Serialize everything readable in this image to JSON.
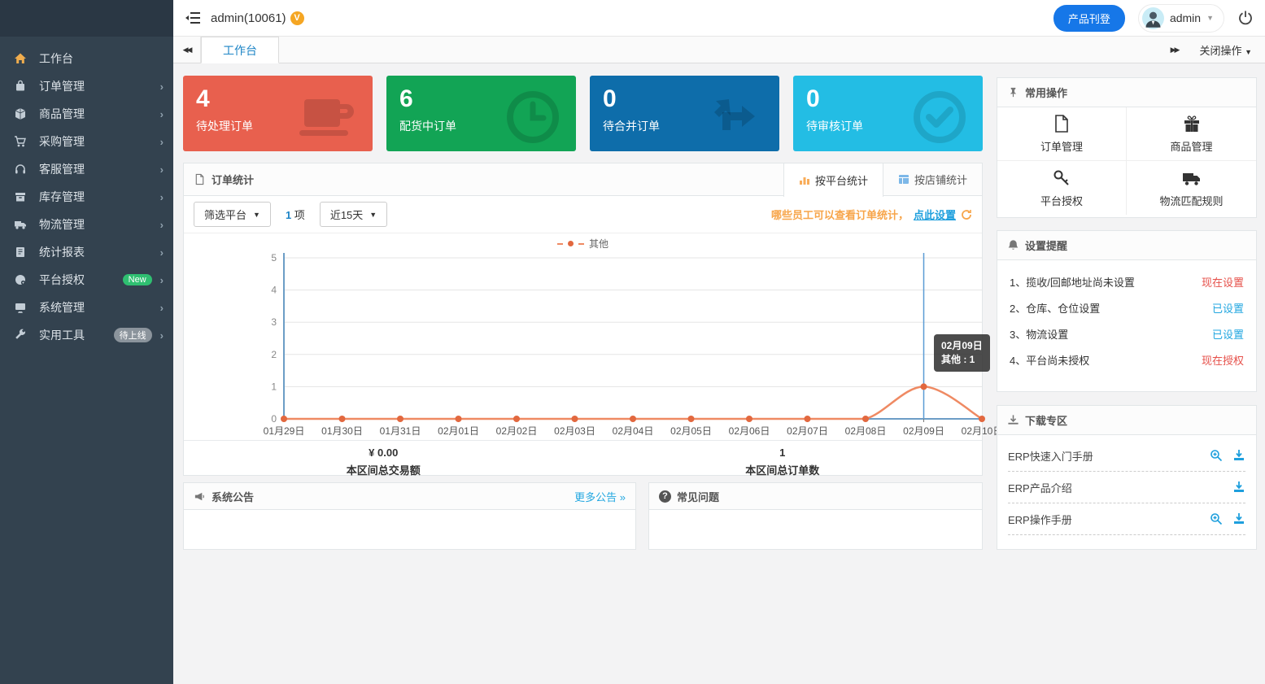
{
  "app": {
    "accent_blue": "#1c84c6",
    "link_blue": "#23a7e0",
    "warn_orange": "#f7a54a",
    "danger_red": "#e6504a"
  },
  "topbar": {
    "username": "admin(10061)",
    "vip_badge": "V",
    "publish_button": "产品刊登",
    "account_name": "admin"
  },
  "tabbar": {
    "scroll_left": "◀◀",
    "active_tab": "工作台",
    "scroll_right": "▶▶",
    "close_menu": "关闭操作"
  },
  "sidebar": {
    "items": [
      {
        "label": "工作台",
        "icon": "home-icon",
        "active": true
      },
      {
        "label": "订单管理",
        "icon": "orders-icon"
      },
      {
        "label": "商品管理",
        "icon": "products-icon"
      },
      {
        "label": "采购管理",
        "icon": "purchase-icon"
      },
      {
        "label": "客服管理",
        "icon": "service-icon"
      },
      {
        "label": "库存管理",
        "icon": "inventory-icon"
      },
      {
        "label": "物流管理",
        "icon": "logistics-icon"
      },
      {
        "label": "统计报表",
        "icon": "reports-icon"
      },
      {
        "label": "平台授权",
        "icon": "platform-icon",
        "badge": "New"
      },
      {
        "label": "系统管理",
        "icon": "system-icon"
      },
      {
        "label": "实用工具",
        "icon": "tools-icon",
        "badge": "待上线"
      }
    ]
  },
  "cards": [
    {
      "value": "4",
      "label": "待处理订单",
      "color": "#e8604e",
      "icon": "cup-icon"
    },
    {
      "value": "6",
      "label": "配货中订单",
      "color": "#12a455",
      "icon": "clock-icon"
    },
    {
      "value": "0",
      "label": "待合并订单",
      "color": "#0e6daa",
      "icon": "transfer-icon"
    },
    {
      "value": "0",
      "label": "待审核订单",
      "color": "#23bde4",
      "icon": "check-circle-icon"
    }
  ],
  "order_stats": {
    "title": "订单统计",
    "tabs": [
      "按平台统计",
      "按店铺统计"
    ],
    "filter_platform": "筛选平台",
    "selected_count": "1",
    "count_unit": "项",
    "date_range": "近15天",
    "notice": "哪些员工可以查看订单统计，",
    "notice_link": "点此设置",
    "summary": [
      {
        "value": "¥ 0.00",
        "label": "本区间总交易额"
      },
      {
        "value": "1",
        "label": "本区间总订单数"
      }
    ]
  },
  "chart_data": {
    "type": "line",
    "title": "订单统计",
    "x": [
      "01月29日",
      "01月30日",
      "01月31日",
      "02月01日",
      "02月02日",
      "02月03日",
      "02月04日",
      "02月05日",
      "02月06日",
      "02月07日",
      "02月08日",
      "02月09日",
      "02月10日"
    ],
    "series": [
      {
        "name": "其他",
        "color": "#ef8a63",
        "point_color": "#e2683f",
        "values": [
          0,
          0,
          0,
          0,
          0,
          0,
          0,
          0,
          0,
          0,
          0,
          1,
          0
        ]
      }
    ],
    "ylim": [
      0,
      5
    ],
    "yticks": [
      0,
      1,
      2,
      3,
      4,
      5
    ],
    "grid": true,
    "legend_position": "top",
    "axis_color": "#6c9dc6",
    "crosshair_x": "02月09日",
    "tooltip": {
      "title": "02月09日",
      "value": "其他 : 1"
    }
  },
  "announcements": {
    "title": "系统公告",
    "more_link": "更多公告 »"
  },
  "faq": {
    "title": "常见问题",
    "q_glyph": "?"
  },
  "quick_actions": {
    "title": "常用操作",
    "items": [
      {
        "label": "订单管理",
        "icon": "file-icon"
      },
      {
        "label": "商品管理",
        "icon": "gift-icon"
      },
      {
        "label": "平台授权",
        "icon": "key-icon"
      },
      {
        "label": "物流匹配规则",
        "icon": "truck-icon"
      }
    ]
  },
  "reminders": {
    "title": "设置提醒",
    "items": [
      {
        "text": "1、揽收/回邮地址尚未设置",
        "action": "现在设置",
        "state": "danger"
      },
      {
        "text": "2、仓库、仓位设置",
        "action": "已设置",
        "state": "ok"
      },
      {
        "text": "3、物流设置",
        "action": "已设置",
        "state": "ok"
      },
      {
        "text": "4、平台尚未授权",
        "action": "现在授权",
        "state": "danger"
      }
    ]
  },
  "downloads": {
    "title": "下载专区",
    "items": [
      {
        "name": "ERP快速入门手册",
        "preview": true
      },
      {
        "name": "ERP产品介绍",
        "preview": false
      },
      {
        "name": "ERP操作手册",
        "preview": true
      }
    ]
  }
}
